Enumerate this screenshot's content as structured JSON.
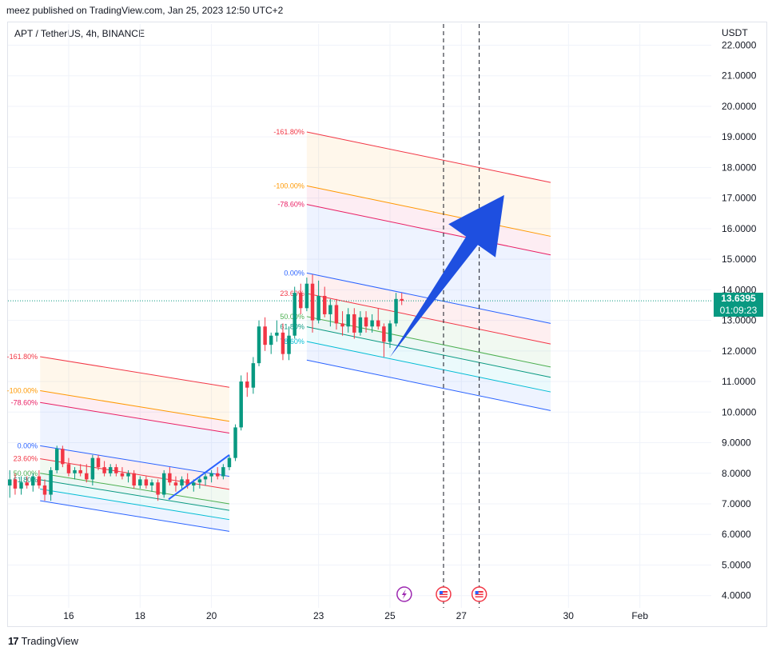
{
  "header": {
    "publisher_line": "meez published on TradingView.com, Jan 25, 2023 12:50 UTC+2"
  },
  "symbol_line": "APT / TetherUS, 4h, BINANCE",
  "currency": "USDT",
  "current_price": {
    "price": "13.6395",
    "countdown": "01:09:23",
    "color": "#089981"
  },
  "footer": {
    "brand": "TradingView",
    "logo": "tradingview-logo"
  },
  "chart_data": {
    "type": "line",
    "title": "",
    "ylabel": "",
    "xlabel": "",
    "ylim": [
      3.6,
      22.3
    ],
    "y_ticks": [
      "22.0000",
      "21.0000",
      "20.0000",
      "19.0000",
      "18.0000",
      "17.0000",
      "16.0000",
      "15.0000",
      "14.0000",
      "13.0000",
      "12.0000",
      "11.0000",
      "10.0000",
      "9.0000",
      "8.0000",
      "7.0000",
      "6.0000",
      "5.0000",
      "4.0000"
    ],
    "x_ticks": [
      {
        "label": "16",
        "day": 16
      },
      {
        "label": "18",
        "day": 18
      },
      {
        "label": "20",
        "day": 20
      },
      {
        "label": "23",
        "day": 23
      },
      {
        "label": "25",
        "day": 25
      },
      {
        "label": "27",
        "day": 27
      },
      {
        "label": "30",
        "day": 30
      },
      {
        "label": "Feb",
        "day": 32
      }
    ],
    "xlim_days": [
      14.3,
      34.0
    ],
    "up_color": "#089981",
    "down_color": "#f23645",
    "candles": [
      {
        "t": 14.35,
        "o": 7.6,
        "h": 8.1,
        "l": 7.2,
        "c": 7.8
      },
      {
        "t": 14.5,
        "o": 7.8,
        "h": 8.0,
        "l": 7.3,
        "c": 7.5
      },
      {
        "t": 14.67,
        "o": 7.5,
        "h": 7.9,
        "l": 7.3,
        "c": 7.7
      },
      {
        "t": 14.83,
        "o": 7.7,
        "h": 7.9,
        "l": 7.5,
        "c": 7.6
      },
      {
        "t": 15.0,
        "o": 7.6,
        "h": 8.0,
        "l": 7.4,
        "c": 7.9
      },
      {
        "t": 15.17,
        "o": 7.9,
        "h": 8.1,
        "l": 7.5,
        "c": 7.6
      },
      {
        "t": 15.33,
        "o": 7.6,
        "h": 7.8,
        "l": 7.1,
        "c": 7.3
      },
      {
        "t": 15.5,
        "o": 7.3,
        "h": 8.2,
        "l": 7.1,
        "c": 8.1
      },
      {
        "t": 15.67,
        "o": 8.1,
        "h": 8.9,
        "l": 8.0,
        "c": 8.8
      },
      {
        "t": 15.83,
        "o": 8.8,
        "h": 8.9,
        "l": 8.2,
        "c": 8.3
      },
      {
        "t": 16.0,
        "o": 8.3,
        "h": 8.5,
        "l": 7.9,
        "c": 8.0
      },
      {
        "t": 16.17,
        "o": 8.0,
        "h": 8.2,
        "l": 7.8,
        "c": 8.1
      },
      {
        "t": 16.33,
        "o": 8.1,
        "h": 8.3,
        "l": 7.9,
        "c": 8.0
      },
      {
        "t": 16.5,
        "o": 8.0,
        "h": 8.3,
        "l": 7.7,
        "c": 7.8
      },
      {
        "t": 16.67,
        "o": 7.8,
        "h": 8.6,
        "l": 7.6,
        "c": 8.5
      },
      {
        "t": 16.83,
        "o": 8.5,
        "h": 8.6,
        "l": 8.1,
        "c": 8.2
      },
      {
        "t": 17.0,
        "o": 8.2,
        "h": 8.4,
        "l": 7.9,
        "c": 8.0
      },
      {
        "t": 17.17,
        "o": 8.0,
        "h": 8.3,
        "l": 7.9,
        "c": 8.2
      },
      {
        "t": 17.33,
        "o": 8.2,
        "h": 8.3,
        "l": 7.9,
        "c": 8.0
      },
      {
        "t": 17.5,
        "o": 8.0,
        "h": 8.2,
        "l": 7.8,
        "c": 7.9
      },
      {
        "t": 17.67,
        "o": 7.9,
        "h": 8.1,
        "l": 7.7,
        "c": 8.0
      },
      {
        "t": 17.83,
        "o": 8.0,
        "h": 8.1,
        "l": 7.5,
        "c": 7.6
      },
      {
        "t": 18.0,
        "o": 7.6,
        "h": 7.9,
        "l": 7.5,
        "c": 7.8
      },
      {
        "t": 18.17,
        "o": 7.8,
        "h": 7.9,
        "l": 7.5,
        "c": 7.6
      },
      {
        "t": 18.33,
        "o": 7.6,
        "h": 7.8,
        "l": 7.4,
        "c": 7.7
      },
      {
        "t": 18.5,
        "o": 7.7,
        "h": 7.8,
        "l": 7.1,
        "c": 7.3
      },
      {
        "t": 18.67,
        "o": 7.3,
        "h": 8.1,
        "l": 7.2,
        "c": 8.0
      },
      {
        "t": 18.83,
        "o": 8.0,
        "h": 8.2,
        "l": 7.6,
        "c": 7.7
      },
      {
        "t": 19.0,
        "o": 7.7,
        "h": 7.9,
        "l": 7.4,
        "c": 7.6
      },
      {
        "t": 19.17,
        "o": 7.6,
        "h": 7.9,
        "l": 7.5,
        "c": 7.8
      },
      {
        "t": 19.33,
        "o": 7.8,
        "h": 8.0,
        "l": 7.5,
        "c": 7.6
      },
      {
        "t": 19.5,
        "o": 7.6,
        "h": 7.8,
        "l": 7.4,
        "c": 7.7
      },
      {
        "t": 19.67,
        "o": 7.7,
        "h": 7.9,
        "l": 7.5,
        "c": 7.8
      },
      {
        "t": 19.83,
        "o": 7.8,
        "h": 8.0,
        "l": 7.6,
        "c": 7.9
      },
      {
        "t": 20.0,
        "o": 7.9,
        "h": 8.1,
        "l": 7.7,
        "c": 8.0
      },
      {
        "t": 20.17,
        "o": 8.0,
        "h": 8.2,
        "l": 7.8,
        "c": 7.9
      },
      {
        "t": 20.33,
        "o": 7.9,
        "h": 8.3,
        "l": 7.8,
        "c": 8.2
      },
      {
        "t": 20.5,
        "o": 8.2,
        "h": 8.6,
        "l": 8.1,
        "c": 8.5
      },
      {
        "t": 20.67,
        "o": 8.5,
        "h": 9.6,
        "l": 8.4,
        "c": 9.5
      },
      {
        "t": 20.83,
        "o": 9.5,
        "h": 11.2,
        "l": 9.4,
        "c": 11.0
      },
      {
        "t": 21.0,
        "o": 11.0,
        "h": 11.3,
        "l": 10.5,
        "c": 10.8
      },
      {
        "t": 21.17,
        "o": 10.8,
        "h": 11.8,
        "l": 10.6,
        "c": 11.6
      },
      {
        "t": 21.33,
        "o": 11.6,
        "h": 13.0,
        "l": 11.5,
        "c": 12.8
      },
      {
        "t": 21.5,
        "o": 12.8,
        "h": 13.1,
        "l": 12.0,
        "c": 12.2
      },
      {
        "t": 21.67,
        "o": 12.2,
        "h": 12.6,
        "l": 11.9,
        "c": 12.5
      },
      {
        "t": 21.83,
        "o": 12.5,
        "h": 13.0,
        "l": 12.3,
        "c": 12.6
      },
      {
        "t": 22.0,
        "o": 12.6,
        "h": 12.9,
        "l": 11.7,
        "c": 11.9
      },
      {
        "t": 22.17,
        "o": 11.9,
        "h": 12.8,
        "l": 11.7,
        "c": 12.5
      },
      {
        "t": 22.33,
        "o": 12.5,
        "h": 14.1,
        "l": 12.4,
        "c": 13.9
      },
      {
        "t": 22.5,
        "o": 13.9,
        "h": 14.2,
        "l": 13.2,
        "c": 13.4
      },
      {
        "t": 22.67,
        "o": 13.4,
        "h": 14.4,
        "l": 13.3,
        "c": 14.2
      },
      {
        "t": 22.83,
        "o": 14.2,
        "h": 14.5,
        "l": 12.6,
        "c": 13.0
      },
      {
        "t": 23.0,
        "o": 13.0,
        "h": 14.3,
        "l": 12.9,
        "c": 13.8
      },
      {
        "t": 23.17,
        "o": 13.8,
        "h": 14.1,
        "l": 13.1,
        "c": 13.2
      },
      {
        "t": 23.33,
        "o": 13.2,
        "h": 13.7,
        "l": 12.8,
        "c": 13.5
      },
      {
        "t": 23.5,
        "o": 13.5,
        "h": 13.7,
        "l": 12.7,
        "c": 12.9
      },
      {
        "t": 23.67,
        "o": 12.9,
        "h": 13.3,
        "l": 12.5,
        "c": 12.8
      },
      {
        "t": 23.83,
        "o": 12.8,
        "h": 13.4,
        "l": 12.6,
        "c": 13.2
      },
      {
        "t": 24.0,
        "o": 13.2,
        "h": 13.4,
        "l": 12.4,
        "c": 12.6
      },
      {
        "t": 24.17,
        "o": 12.6,
        "h": 13.3,
        "l": 12.5,
        "c": 13.1
      },
      {
        "t": 24.33,
        "o": 13.1,
        "h": 13.3,
        "l": 12.6,
        "c": 12.8
      },
      {
        "t": 24.5,
        "o": 12.8,
        "h": 13.2,
        "l": 12.6,
        "c": 13.0
      },
      {
        "t": 24.67,
        "o": 13.0,
        "h": 13.4,
        "l": 12.7,
        "c": 12.8
      },
      {
        "t": 24.83,
        "o": 12.8,
        "h": 12.9,
        "l": 11.8,
        "c": 12.3
      },
      {
        "t": 25.0,
        "o": 12.3,
        "h": 13.0,
        "l": 12.1,
        "c": 12.9
      },
      {
        "t": 25.17,
        "o": 12.9,
        "h": 13.9,
        "l": 12.8,
        "c": 13.7
      },
      {
        "t": 25.33,
        "o": 13.7,
        "h": 13.9,
        "l": 13.5,
        "c": 13.64
      }
    ],
    "fib_channels": [
      {
        "levels": [
          {
            "label": "0.00%",
            "value": 0.0,
            "color": "#2962ff"
          },
          {
            "label": "23.60%",
            "value": 0.236,
            "color": "#f23645"
          },
          {
            "label": "50.00%",
            "value": 0.5,
            "color": "#4caf50"
          },
          {
            "label": "61.80%",
            "value": 0.618,
            "color": "#089981"
          },
          {
            "label": "78.60%",
            "value": 0.786,
            "color": "#00bcd4"
          },
          {
            "label": "100.00%",
            "value": 1.0,
            "color": "#2962ff"
          },
          {
            "label": "-78.60%",
            "value": -0.786,
            "color": "#e91e63"
          },
          {
            "label": "-100.00%",
            "value": -1.0,
            "color": "#ff9800"
          },
          {
            "label": "-161.80%",
            "value": -1.618,
            "color": "#f23645"
          }
        ],
        "start": {
          "t": 22.67,
          "p": 14.55
        },
        "end": {
          "t": 29.5,
          "p": 12.9
        },
        "width": -2.85,
        "shown_labels": [
          "0.00%",
          "23.60%",
          "50.00%",
          "61.80%",
          "78.60%",
          "-78.60%",
          "-100.00%",
          "-161.80%"
        ]
      },
      {
        "levels": [
          {
            "label": "0.00%",
            "value": 0.0,
            "color": "#2962ff"
          },
          {
            "label": "23.60%",
            "value": 0.236,
            "color": "#f23645"
          },
          {
            "label": "50.00%",
            "value": 0.5,
            "color": "#4caf50"
          },
          {
            "label": "61.80%",
            "value": 0.618,
            "color": "#089981"
          },
          {
            "label": "78.60%",
            "value": 0.786,
            "color": "#00bcd4"
          },
          {
            "label": "100.00%",
            "value": 1.0,
            "color": "#2962ff"
          },
          {
            "label": "-78.60%",
            "value": -0.786,
            "color": "#e91e63"
          },
          {
            "label": "-100.00%",
            "value": -1.0,
            "color": "#ff9800"
          },
          {
            "label": "-161.80%",
            "value": -1.618,
            "color": "#f23645"
          }
        ],
        "start": {
          "t": 15.2,
          "p": 8.9
        },
        "end": {
          "t": 20.5,
          "p": 7.9
        },
        "width": -1.8,
        "shown_labels": [
          "0.00%",
          "23.60%",
          "50.00%",
          "61.80%",
          "-78.60%",
          "-100.00%",
          "-161.80%"
        ]
      }
    ],
    "vertical_dashed_lines_days": [
      26.5,
      27.5
    ],
    "big_arrow": {
      "from": {
        "t": 25.0,
        "p": 11.8
      },
      "to": {
        "t": 28.2,
        "p": 17.1
      },
      "color": "#1e4fe0"
    },
    "small_arrow": {
      "from": {
        "t": 18.8,
        "p": 7.15
      },
      "to": {
        "t": 20.5,
        "p": 8.6
      },
      "color": "#2962ff"
    },
    "event_icons": [
      {
        "day": 25.4,
        "name": "lightning-icon",
        "color": "#9c27b0"
      },
      {
        "day": 26.5,
        "name": "us-flag-icon",
        "color": "#f23645"
      },
      {
        "day": 27.5,
        "name": "us-flag-icon",
        "color": "#f23645"
      }
    ],
    "current_price_line": 13.64
  }
}
